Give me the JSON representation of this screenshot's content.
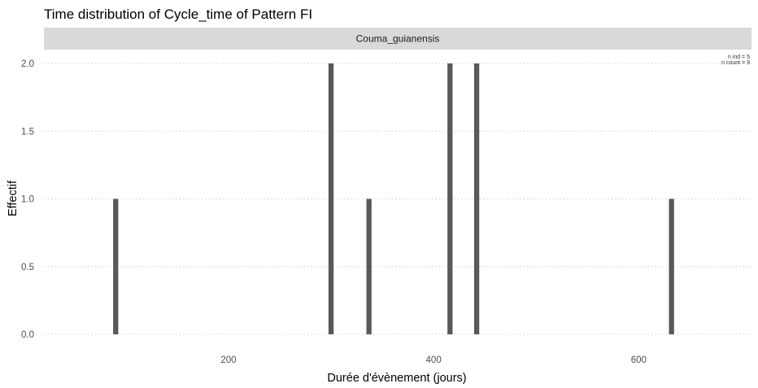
{
  "chart_data": {
    "type": "bar",
    "title": "Time distribution of Cycle_time of Pattern FI",
    "facet_label": "Couma_guianensis",
    "xlabel": "Durée d'évènement (jours)",
    "ylabel": "Effectif",
    "xlim": [
      20,
      710
    ],
    "ylim": [
      0,
      2
    ],
    "x_ticks": [
      200,
      400,
      600
    ],
    "x_tick_labels": [
      "200",
      "400",
      "600"
    ],
    "y_ticks": [
      0,
      0.5,
      1,
      1.5,
      2
    ],
    "y_tick_labels": [
      "0.0",
      "0.5",
      "1.0",
      "1.5",
      "2.0"
    ],
    "bar_width_days": 5,
    "bars": [
      {
        "x": 90,
        "y": 1
      },
      {
        "x": 300,
        "y": 2
      },
      {
        "x": 337,
        "y": 1
      },
      {
        "x": 416,
        "y": 2
      },
      {
        "x": 442,
        "y": 2
      },
      {
        "x": 632,
        "y": 1
      }
    ],
    "annotations": [
      "n ind =  5",
      "n count =  9"
    ],
    "colors": {
      "bar": "#595959",
      "strip": "#d9d9d9",
      "grid": "#d0d0d0"
    }
  }
}
